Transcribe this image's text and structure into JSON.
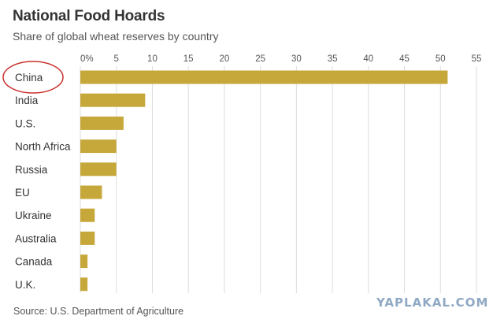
{
  "chart_data": {
    "type": "bar",
    "orientation": "horizontal",
    "title": "National Food Hoards",
    "subtitle": "Share of global wheat reserves by country",
    "categories": [
      "China",
      "India",
      "U.S.",
      "North Africa",
      "Russia",
      "EU",
      "Ukraine",
      "Australia",
      "Canada",
      "U.K."
    ],
    "values": [
      51,
      9,
      6,
      5,
      5,
      3,
      2,
      2,
      1,
      1
    ],
    "unit": "%",
    "xlim": [
      0,
      55
    ],
    "x_ticks": [
      "0%",
      "5",
      "10",
      "15",
      "20",
      "25",
      "30",
      "35",
      "40",
      "45",
      "50",
      "55"
    ],
    "x_tick_values": [
      0,
      5,
      10,
      15,
      20,
      25,
      30,
      35,
      40,
      45,
      50,
      55
    ],
    "axis_position": "top",
    "grid": true,
    "highlighted_category": "China",
    "bar_color": "#c6a73a",
    "grid_color": "#dddddd",
    "highlight_color": "#c9302c"
  },
  "source": "Source: U.S. Department of Agriculture",
  "watermark": "YAPLAKAL.COM"
}
